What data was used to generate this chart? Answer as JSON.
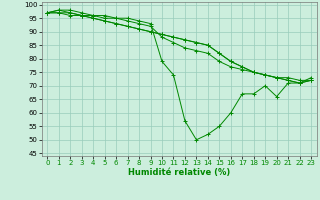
{
  "title": "",
  "xlabel": "Humidité relative (%)",
  "ylabel": "",
  "background_color": "#cceedd",
  "grid_color": "#99ccbb",
  "line_color": "#008800",
  "xlim": [
    -0.5,
    23.5
  ],
  "ylim": [
    44,
    101
  ],
  "yticks": [
    45,
    50,
    55,
    60,
    65,
    70,
    75,
    80,
    85,
    90,
    95,
    100
  ],
  "xticks": [
    0,
    1,
    2,
    3,
    4,
    5,
    6,
    7,
    8,
    9,
    10,
    11,
    12,
    13,
    14,
    15,
    16,
    17,
    18,
    19,
    20,
    21,
    22,
    23
  ],
  "series": [
    [
      97,
      98,
      98,
      97,
      96,
      96,
      95,
      95,
      94,
      93,
      79,
      74,
      57,
      50,
      52,
      55,
      60,
      67,
      67,
      70,
      66,
      71,
      71,
      73
    ],
    [
      97,
      98,
      97,
      96,
      96,
      95,
      95,
      94,
      93,
      92,
      88,
      86,
      84,
      83,
      82,
      79,
      77,
      76,
      75,
      74,
      73,
      73,
      72,
      72
    ],
    [
      97,
      97,
      96,
      96,
      95,
      94,
      93,
      92,
      91,
      90,
      89,
      88,
      87,
      86,
      85,
      82,
      79,
      77,
      75,
      74,
      73,
      72,
      71,
      72
    ],
    [
      97,
      97,
      97,
      96,
      95,
      94,
      93,
      92,
      91,
      90,
      89,
      88,
      87,
      86,
      85,
      82,
      79,
      77,
      75,
      74,
      73,
      72,
      71,
      72
    ]
  ]
}
